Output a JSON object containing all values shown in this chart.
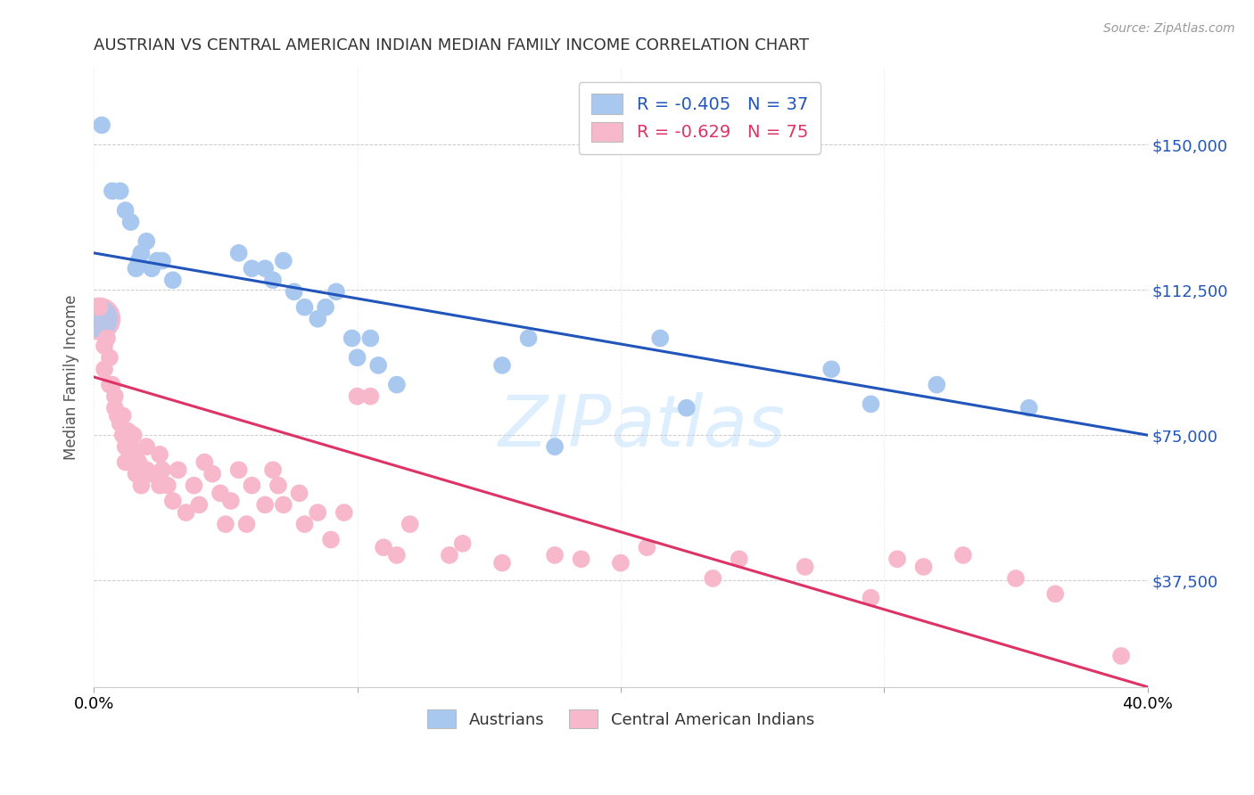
{
  "title": "AUSTRIAN VS CENTRAL AMERICAN INDIAN MEDIAN FAMILY INCOME CORRELATION CHART",
  "source": "Source: ZipAtlas.com",
  "ylabel": "Median Family Income",
  "xlim": [
    0.0,
    0.4
  ],
  "ylim": [
    10000,
    170000
  ],
  "yticks": [
    37500,
    75000,
    112500,
    150000
  ],
  "ytick_labels": [
    "$37,500",
    "$75,000",
    "$112,500",
    "$150,000"
  ],
  "background_color": "#ffffff",
  "watermark": "ZIPatlas",
  "legend_austrians_R": "R = -0.405",
  "legend_austrians_N": "N = 37",
  "legend_central_R": "R = -0.629",
  "legend_central_N": "N = 75",
  "austrians_color": "#a8c8f0",
  "central_color": "#f8b8cc",
  "line_austrians_color": "#2255bb",
  "line_central_color": "#dd3366",
  "austrians_x": [
    0.003,
    0.007,
    0.01,
    0.012,
    0.014,
    0.016,
    0.017,
    0.018,
    0.02,
    0.022,
    0.024,
    0.026,
    0.03,
    0.055,
    0.06,
    0.065,
    0.068,
    0.072,
    0.076,
    0.08,
    0.085,
    0.088,
    0.092,
    0.098,
    0.1,
    0.105,
    0.108,
    0.115,
    0.155,
    0.165,
    0.175,
    0.215,
    0.225,
    0.28,
    0.295,
    0.32,
    0.355
  ],
  "austrians_y": [
    155000,
    138000,
    138000,
    133000,
    130000,
    118000,
    120000,
    122000,
    125000,
    118000,
    120000,
    120000,
    115000,
    122000,
    118000,
    118000,
    115000,
    120000,
    112000,
    108000,
    105000,
    108000,
    112000,
    100000,
    95000,
    100000,
    93000,
    88000,
    93000,
    100000,
    72000,
    100000,
    82000,
    92000,
    83000,
    88000,
    82000
  ],
  "central_x": [
    0.002,
    0.004,
    0.004,
    0.005,
    0.006,
    0.006,
    0.007,
    0.008,
    0.008,
    0.009,
    0.01,
    0.011,
    0.011,
    0.012,
    0.012,
    0.013,
    0.014,
    0.015,
    0.015,
    0.016,
    0.017,
    0.018,
    0.018,
    0.019,
    0.02,
    0.02,
    0.022,
    0.025,
    0.025,
    0.026,
    0.028,
    0.03,
    0.032,
    0.035,
    0.038,
    0.04,
    0.042,
    0.045,
    0.048,
    0.05,
    0.052,
    0.055,
    0.058,
    0.06,
    0.065,
    0.068,
    0.07,
    0.072,
    0.078,
    0.08,
    0.085,
    0.09,
    0.095,
    0.1,
    0.105,
    0.11,
    0.115,
    0.12,
    0.135,
    0.14,
    0.155,
    0.175,
    0.185,
    0.2,
    0.21,
    0.235,
    0.245,
    0.27,
    0.295,
    0.305,
    0.315,
    0.33,
    0.35,
    0.365,
    0.39
  ],
  "central_y": [
    108000,
    98000,
    92000,
    100000,
    95000,
    88000,
    88000,
    82000,
    85000,
    80000,
    78000,
    80000,
    75000,
    72000,
    68000,
    76000,
    72000,
    70000,
    75000,
    65000,
    68000,
    66000,
    62000,
    65000,
    72000,
    66000,
    65000,
    70000,
    62000,
    66000,
    62000,
    58000,
    66000,
    55000,
    62000,
    57000,
    68000,
    65000,
    60000,
    52000,
    58000,
    66000,
    52000,
    62000,
    57000,
    66000,
    62000,
    57000,
    60000,
    52000,
    55000,
    48000,
    55000,
    85000,
    85000,
    46000,
    44000,
    52000,
    44000,
    47000,
    42000,
    44000,
    43000,
    42000,
    46000,
    38000,
    43000,
    41000,
    33000,
    43000,
    41000,
    44000,
    38000,
    34000,
    18000
  ],
  "austrians_line_x": [
    0.0,
    0.4
  ],
  "austrians_line_y": [
    122000,
    75000
  ],
  "central_line_x": [
    0.0,
    0.4
  ],
  "central_line_y": [
    90000,
    10000
  ]
}
